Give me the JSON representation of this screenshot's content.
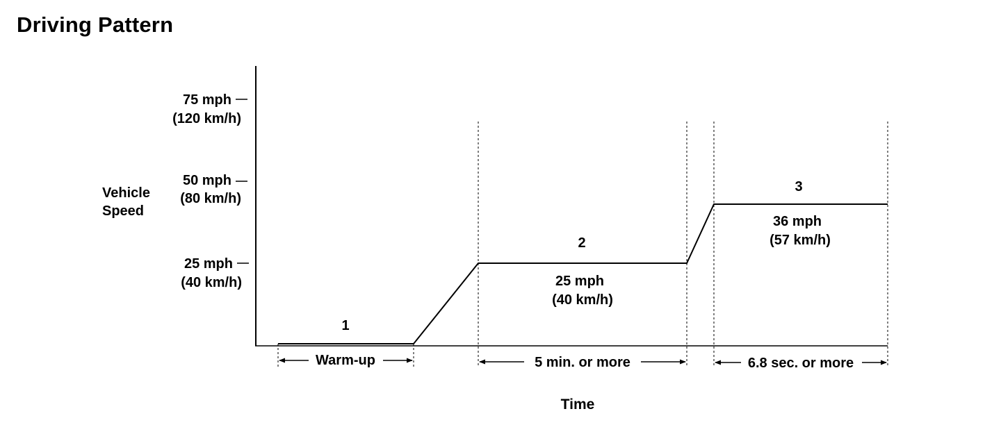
{
  "title": "Driving Pattern",
  "y_axis": {
    "label_line1": "Vehicle",
    "label_line2": "Speed",
    "ticks": [
      {
        "mph": "75 mph",
        "kmh": "(120 km/h)"
      },
      {
        "mph": "50 mph",
        "kmh": "(80 km/h)"
      },
      {
        "mph": "25 mph",
        "kmh": "(40 km/h)"
      }
    ]
  },
  "x_axis": {
    "label": "Time"
  },
  "phases": [
    {
      "number": "1",
      "span_label": "Warm-up"
    },
    {
      "number": "2",
      "speed_mph": "25 mph",
      "speed_kmh": "(40 km/h)",
      "span_label": "5 min. or more"
    },
    {
      "number": "3",
      "speed_mph": "36 mph",
      "speed_kmh": "(57 km/h)",
      "span_label": "6.8 sec. or more"
    }
  ]
}
